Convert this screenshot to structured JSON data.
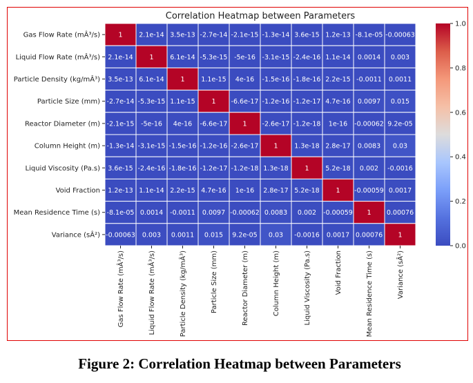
{
  "chart_data": {
    "type": "heatmap",
    "title": "Correlation Heatmap between Parameters",
    "caption": "Figure 2: Correlation Heatmap between Parameters",
    "labels": [
      "Gas Flow Rate (mÂ³/s)",
      "Liquid Flow Rate (mÂ³/s)",
      "Particle Density (kg/mÂ³)",
      "Particle Size (mm)",
      "Reactor Diameter (m)",
      "Column Height (m)",
      "Liquid Viscosity (Pa.s)",
      "Void Fraction",
      "Mean Residence Time (s)",
      "Variance (sÂ²)"
    ],
    "annotations": [
      [
        "1",
        "2.1e-14",
        "3.5e-13",
        "-2.7e-14",
        "-2.1e-15",
        "-1.3e-14",
        "3.6e-15",
        "1.2e-13",
        "-8.1e-05",
        "-0.00063"
      ],
      [
        "2.1e-14",
        "1",
        "6.1e-14",
        "-5.3e-15",
        "-5e-16",
        "-3.1e-15",
        "-2.4e-16",
        "1.1e-14",
        "0.0014",
        "0.003"
      ],
      [
        "3.5e-13",
        "6.1e-14",
        "1",
        "1.1e-15",
        "4e-16",
        "-1.5e-16",
        "-1.8e-16",
        "2.2e-15",
        "-0.0011",
        "0.0011"
      ],
      [
        "-2.7e-14",
        "-5.3e-15",
        "1.1e-15",
        "1",
        "-6.6e-17",
        "-1.2e-16",
        "-1.2e-17",
        "4.7e-16",
        "0.0097",
        "0.015"
      ],
      [
        "-2.1e-15",
        "-5e-16",
        "4e-16",
        "-6.6e-17",
        "1",
        "-2.6e-17",
        "-1.2e-18",
        "1e-16",
        "-0.00062",
        "9.2e-05"
      ],
      [
        "-1.3e-14",
        "-3.1e-15",
        "-1.5e-16",
        "-1.2e-16",
        "-2.6e-17",
        "1",
        "1.3e-18",
        "2.8e-17",
        "0.0083",
        "0.03"
      ],
      [
        "3.6e-15",
        "-2.4e-16",
        "-1.8e-16",
        "-1.2e-17",
        "-1.2e-18",
        "1.3e-18",
        "1",
        "5.2e-18",
        "0.002",
        "-0.0016"
      ],
      [
        "1.2e-13",
        "1.1e-14",
        "2.2e-15",
        "4.7e-16",
        "1e-16",
        "2.8e-17",
        "5.2e-18",
        "1",
        "-0.00059",
        "0.0017"
      ],
      [
        "-8.1e-05",
        "0.0014",
        "-0.0011",
        "0.0097",
        "-0.00062",
        "0.0083",
        "0.002",
        "-0.00059",
        "1",
        "0.00076"
      ],
      [
        "-0.00063",
        "0.003",
        "0.0011",
        "0.015",
        "9.2e-05",
        "0.03",
        "-0.0016",
        "0.0017",
        "0.00076",
        "1"
      ]
    ],
    "colormap": "coolwarm",
    "vmin": 0.0,
    "vmax": 1.0,
    "colorbar_ticks": [
      "0.0",
      "0.2",
      "0.4",
      "0.6",
      "0.8",
      "1.0"
    ],
    "colors": {
      "low": "#3b4cc0",
      "mid": "#dddddd",
      "high": "#b40426",
      "frame": "#e00000"
    }
  }
}
